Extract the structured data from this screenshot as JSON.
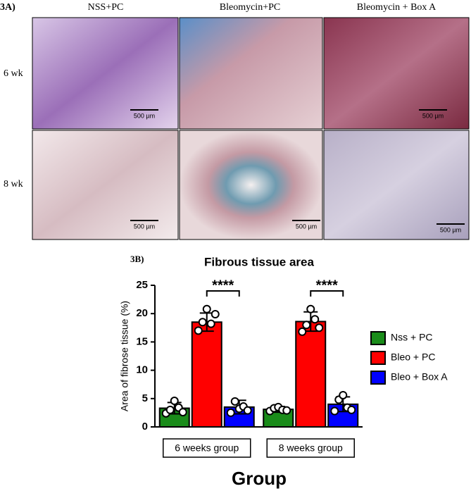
{
  "figure_a": {
    "label": "3A)",
    "columns": [
      "NSS+PC",
      "Bleomycin+PC",
      "Bleomycin + Box A"
    ],
    "rows": [
      "6 wk",
      "8 wk"
    ],
    "scale_bars": [
      "500 µm",
      "500 µm",
      "500 µm",
      "500 µm",
      "500 µm"
    ]
  },
  "chart_data": {
    "type": "bar",
    "panel_label": "3B)",
    "title": "Fibrous tissue area",
    "y_label": "Area of fibrose tissue (%)",
    "x_label": "Group",
    "categories": [
      "6 weeks group",
      "8 weeks group"
    ],
    "series": [
      {
        "name": "Nss + PC",
        "color": "#1a8c1a",
        "values": [
          3.3,
          3.1
        ],
        "errors": [
          1.0,
          0.5
        ],
        "points": [
          [
            2.4,
            3.0,
            4.6,
            3.4,
            2.6
          ],
          [
            2.8,
            3.3,
            3.5,
            3.0,
            2.9
          ]
        ]
      },
      {
        "name": "Bleo + PC",
        "color": "#ff0000",
        "values": [
          18.5,
          18.6
        ],
        "errors": [
          1.6,
          1.7
        ],
        "points": [
          [
            17.0,
            18.5,
            20.8,
            18.2,
            19.9
          ],
          [
            16.8,
            18.0,
            20.8,
            19.0,
            17.5
          ]
        ]
      },
      {
        "name": "Bleo + Box A",
        "color": "#0000ff",
        "values": [
          3.5,
          4.0
        ],
        "errors": [
          1.2,
          1.3
        ],
        "points": [
          [
            2.5,
            4.5,
            3.2,
            3.6,
            2.9
          ],
          [
            2.8,
            4.8,
            5.6,
            3.4,
            3.0
          ]
        ]
      }
    ],
    "annotations": [
      "****",
      "****"
    ],
    "ylim": [
      0,
      25
    ],
    "yticks": [
      0,
      5,
      10,
      15,
      20,
      25
    ],
    "legend": "right"
  }
}
